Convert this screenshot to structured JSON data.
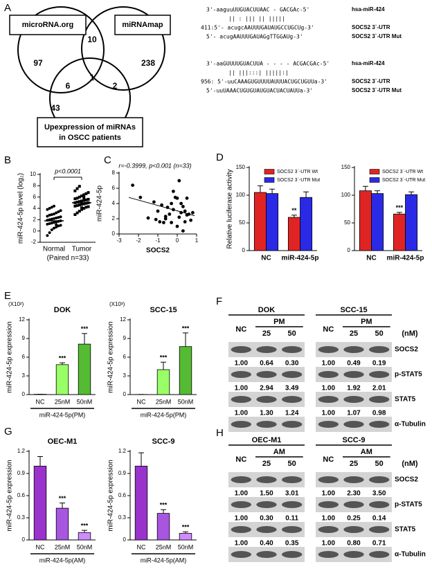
{
  "panel_labels": [
    "A",
    "B",
    "C",
    "D",
    "E",
    "F",
    "G",
    "H"
  ],
  "venn": {
    "set_labels": [
      "microRNA.org",
      "miRNAmap"
    ],
    "set3_lines": [
      "Upexpression of miRNAs",
      "in OSCC patients"
    ],
    "counts": [
      97,
      10,
      238,
      6,
      1,
      2,
      43
    ]
  },
  "alignments": [
    {
      "lines": [
        {
          "seq": "3'-aaguuUUGUACUUAAC - GACGAc-5'",
          "label": "hsa-miR-424"
        },
        {
          "seq": "||  :  |||   ||  |||||"
        },
        {
          "seq": "411:5'- acugcAAUUUGAUAUGCCUGCUg-3'",
          "label": "SOCS2 3`-UTR"
        },
        {
          "seq": "5'- acugAAUUUGAUAGgTTGGAUg-3'",
          "label": "SOCS2 3`-UTR Mut"
        }
      ]
    },
    {
      "lines": [
        {
          "seq": "3'-aaGUUUUGUACUUA - - - - ACGACGAc-5'",
          "label": "hsa-miR-424"
        },
        {
          "seq": "||   |||:::|    |||||:|"
        },
        {
          "seq": "956: 5'-uuCAAAGUGUUUUAUUUACUGCUGUUa-3'",
          "label": "SOCS2 3`-UTR"
        },
        {
          "seq": "5'-uuUAAACUGUGUAUGUACUACUAUUa-3'",
          "label": "SOCS2 3`-UTR Mut"
        }
      ]
    }
  ],
  "chart_data": [
    {
      "type": "strip",
      "ylabel": "miR-424-5p level (log₂)",
      "categories": [
        "Normal",
        "Tumor"
      ],
      "xlabel": "(Paired n=33)",
      "annotation": "p<0.0001",
      "ylim": [
        -2,
        10
      ],
      "yticks": [
        -2,
        0,
        2,
        4,
        6,
        8,
        10
      ],
      "values": [
        [
          -0.8,
          -0.3,
          0.2,
          0.5,
          0.7,
          0.9,
          1.0,
          1.2,
          1.3,
          1.4,
          1.5,
          1.6,
          1.7,
          1.8,
          1.9,
          2.0,
          2.1,
          2.2,
          2.3,
          2.4,
          2.5,
          2.6,
          2.8,
          2.9,
          3.0,
          3.2,
          3.4,
          3.6,
          3.8,
          4.0,
          4.2,
          4.4,
          1.1
        ],
        [
          2.9,
          3.2,
          3.5,
          3.8,
          4.0,
          4.2,
          4.3,
          4.4,
          4.5,
          4.6,
          4.7,
          4.8,
          4.9,
          5.0,
          5.0,
          5.1,
          5.2,
          5.3,
          5.4,
          5.5,
          5.6,
          5.7,
          5.8,
          6.0,
          6.2,
          6.4,
          6.6,
          6.8,
          7.1,
          7.5,
          7.9,
          4.1,
          5.9
        ]
      ],
      "means": [
        1.8,
        5.0
      ]
    },
    {
      "type": "scatter",
      "xlabel": "SOCS2",
      "ylabel": "miR-424-5p",
      "annotation": "r=-0.3999, p<0.001 (n=33)",
      "x": [
        -2.3,
        -1.9,
        -1.5,
        -1.2,
        -1.0,
        -0.9,
        -0.8,
        -0.7,
        -0.6,
        -0.5,
        -0.4,
        -0.3,
        -0.3,
        -0.2,
        -0.1,
        0.0,
        0.0,
        0.1,
        0.1,
        0.2,
        0.2,
        0.3,
        0.3,
        0.4,
        0.5,
        0.5,
        0.6,
        0.7,
        0.8,
        -1.1,
        -0.6,
        -0.2,
        0.4
      ],
      "values": [
        6.4,
        4.8,
        2.1,
        4.2,
        3.0,
        1.6,
        3.8,
        1.5,
        2.0,
        3.5,
        2.6,
        4.0,
        1.5,
        3.2,
        4.8,
        1.0,
        4.7,
        2.2,
        7.0,
        2.8,
        4.0,
        0.4,
        3.6,
        1.6,
        2.5,
        4.7,
        2.6,
        1.8,
        2.8,
        1.9,
        2.3,
        5.6,
        3.0
      ],
      "trendline": {
        "x": [
          -2.5,
          0.9
        ],
        "y": [
          4.8,
          2.4
        ]
      },
      "xlim": [
        -3,
        1
      ],
      "xticks": [
        -3,
        -2,
        -1,
        0,
        1
      ],
      "ylim": [
        0,
        8
      ],
      "yticks": [
        0,
        2,
        4,
        6,
        8
      ]
    },
    {
      "type": "bar",
      "ylabel": "Relative luciferase activity",
      "categories": [
        "NC",
        "miR-424-5p"
      ],
      "ylim": [
        0,
        150
      ],
      "yticks": [
        0,
        50,
        100,
        150
      ],
      "series": [
        {
          "name": "SOCS2 3`-UTR Wt",
          "color": "#e02424",
          "values": [
            105,
            60
          ],
          "errors": [
            12,
            4
          ],
          "stars": [
            null,
            "**"
          ]
        },
        {
          "name": "SOCS2 3`-UTR Mut",
          "color": "#2a2ae6",
          "values": [
            103,
            96
          ],
          "errors": [
            8,
            10
          ]
        }
      ]
    },
    {
      "type": "bar",
      "categories": [
        "NC",
        "miR-424-5p"
      ],
      "ylim": [
        0,
        150
      ],
      "yticks": [
        0,
        50,
        100,
        150
      ],
      "series": [
        {
          "name": "SOCS2 3`-UTR Wt",
          "color": "#e02424",
          "values": [
            108,
            66
          ],
          "errors": [
            8,
            3
          ],
          "stars": [
            null,
            "***"
          ]
        },
        {
          "name": "SOCS2 3`-UTR Mut",
          "color": "#2a2ae6",
          "values": [
            103,
            101
          ],
          "errors": [
            5,
            5
          ]
        }
      ]
    },
    {
      "type": "bar",
      "title": "DOK",
      "multiplier": "(X10²)",
      "ylabel": "miR-424-5p expression",
      "categories": [
        "NC",
        "25nM",
        "50nM"
      ],
      "group_label": "miR-424-5p(PM)",
      "ylim": [
        0,
        12
      ],
      "yticks": [
        0,
        3,
        6,
        9,
        12
      ],
      "values": [
        0.05,
        4.8,
        8.1
      ],
      "errors": [
        0,
        0.3,
        1.7
      ],
      "colors": [
        "#99ff66",
        "#99ff66",
        "#55bb33"
      ],
      "stars": [
        null,
        "***",
        "***"
      ]
    },
    {
      "type": "bar",
      "title": "SCC-15",
      "multiplier": "(X10³)",
      "ylabel": "miR-424-5p expression",
      "categories": [
        "NC",
        "25nM",
        "50nM"
      ],
      "group_label": "miR-424-5p(PM)",
      "ylim": [
        0,
        12
      ],
      "yticks": [
        0,
        3,
        6,
        9,
        12
      ],
      "values": [
        0.02,
        4.0,
        7.7
      ],
      "errors": [
        0,
        1.2,
        2.2
      ],
      "colors": [
        "#99ff66",
        "#99ff66",
        "#55bb33"
      ],
      "stars": [
        null,
        "***",
        "***"
      ]
    },
    {
      "type": "bar",
      "title": "OEC-M1",
      "ylabel": "miR-424-5p expression",
      "categories": [
        "NC",
        "25nM",
        "50nM"
      ],
      "group_label": "miR-424-5p(AM)",
      "ylim": [
        0,
        1.2
      ],
      "yticks": [
        0,
        0.3,
        0.6,
        0.9,
        1.2
      ],
      "values": [
        1.0,
        0.43,
        0.1
      ],
      "errors": [
        0.13,
        0.07,
        0.03
      ],
      "colors": [
        "#9933cc",
        "#a855e0",
        "#d08cff"
      ],
      "stars": [
        null,
        "***",
        "***"
      ]
    },
    {
      "type": "bar",
      "title": "SCC-9",
      "ylabel": "miR-424-5p expression",
      "categories": [
        "NC",
        "25nM",
        "50nM"
      ],
      "group_label": "miR-424-5p(AM)",
      "ylim": [
        0,
        1.2
      ],
      "yticks": [
        0,
        0.3,
        0.6,
        0.9,
        1.2
      ],
      "values": [
        1.0,
        0.36,
        0.09
      ],
      "errors": [
        0.18,
        0.05,
        0.02
      ],
      "colors": [
        "#9933cc",
        "#a855e0",
        "#d08cff"
      ],
      "stars": [
        null,
        "***",
        "***"
      ]
    }
  ],
  "blots": [
    {
      "cell_lines": [
        "DOK",
        "SCC-15"
      ],
      "treatment": "PM",
      "unit": "(nM)",
      "lanes": [
        "NC",
        "25",
        "50"
      ],
      "rows": [
        {
          "name": "SOCS2",
          "values": [
            [
              "1.00",
              "0.64",
              "0.30"
            ],
            [
              "1.00",
              "0.49",
              "0.19"
            ]
          ]
        },
        {
          "name": "p-STAT5",
          "values": [
            [
              "1.00",
              "2.94",
              "3.49"
            ],
            [
              "1.00",
              "1.92",
              "2.01"
            ]
          ]
        },
        {
          "name": "STAT5",
          "values": [
            [
              "1.00",
              "1.30",
              "1.24"
            ],
            [
              "1.00",
              "1.07",
              "0.98"
            ]
          ]
        },
        {
          "name": "α-Tubulin"
        }
      ]
    },
    {
      "cell_lines": [
        "OEC-M1",
        "SCC-9"
      ],
      "treatment": "AM",
      "unit": "(nM)",
      "lanes": [
        "NC",
        "25",
        "50"
      ],
      "rows": [
        {
          "name": "SOCS2",
          "values": [
            [
              "1.00",
              "1.50",
              "3.01"
            ],
            [
              "1.00",
              "2.30",
              "3.50"
            ]
          ]
        },
        {
          "name": "p-STAT5",
          "values": [
            [
              "1.00",
              "0.30",
              "0.11"
            ],
            [
              "1.00",
              "0.25",
              "0.14"
            ]
          ]
        },
        {
          "name": "STAT5",
          "values": [
            [
              "1.00",
              "0.40",
              "0.35"
            ],
            [
              "1.00",
              "0.80",
              "0.71"
            ]
          ]
        },
        {
          "name": "α-Tubulin"
        }
      ]
    }
  ]
}
